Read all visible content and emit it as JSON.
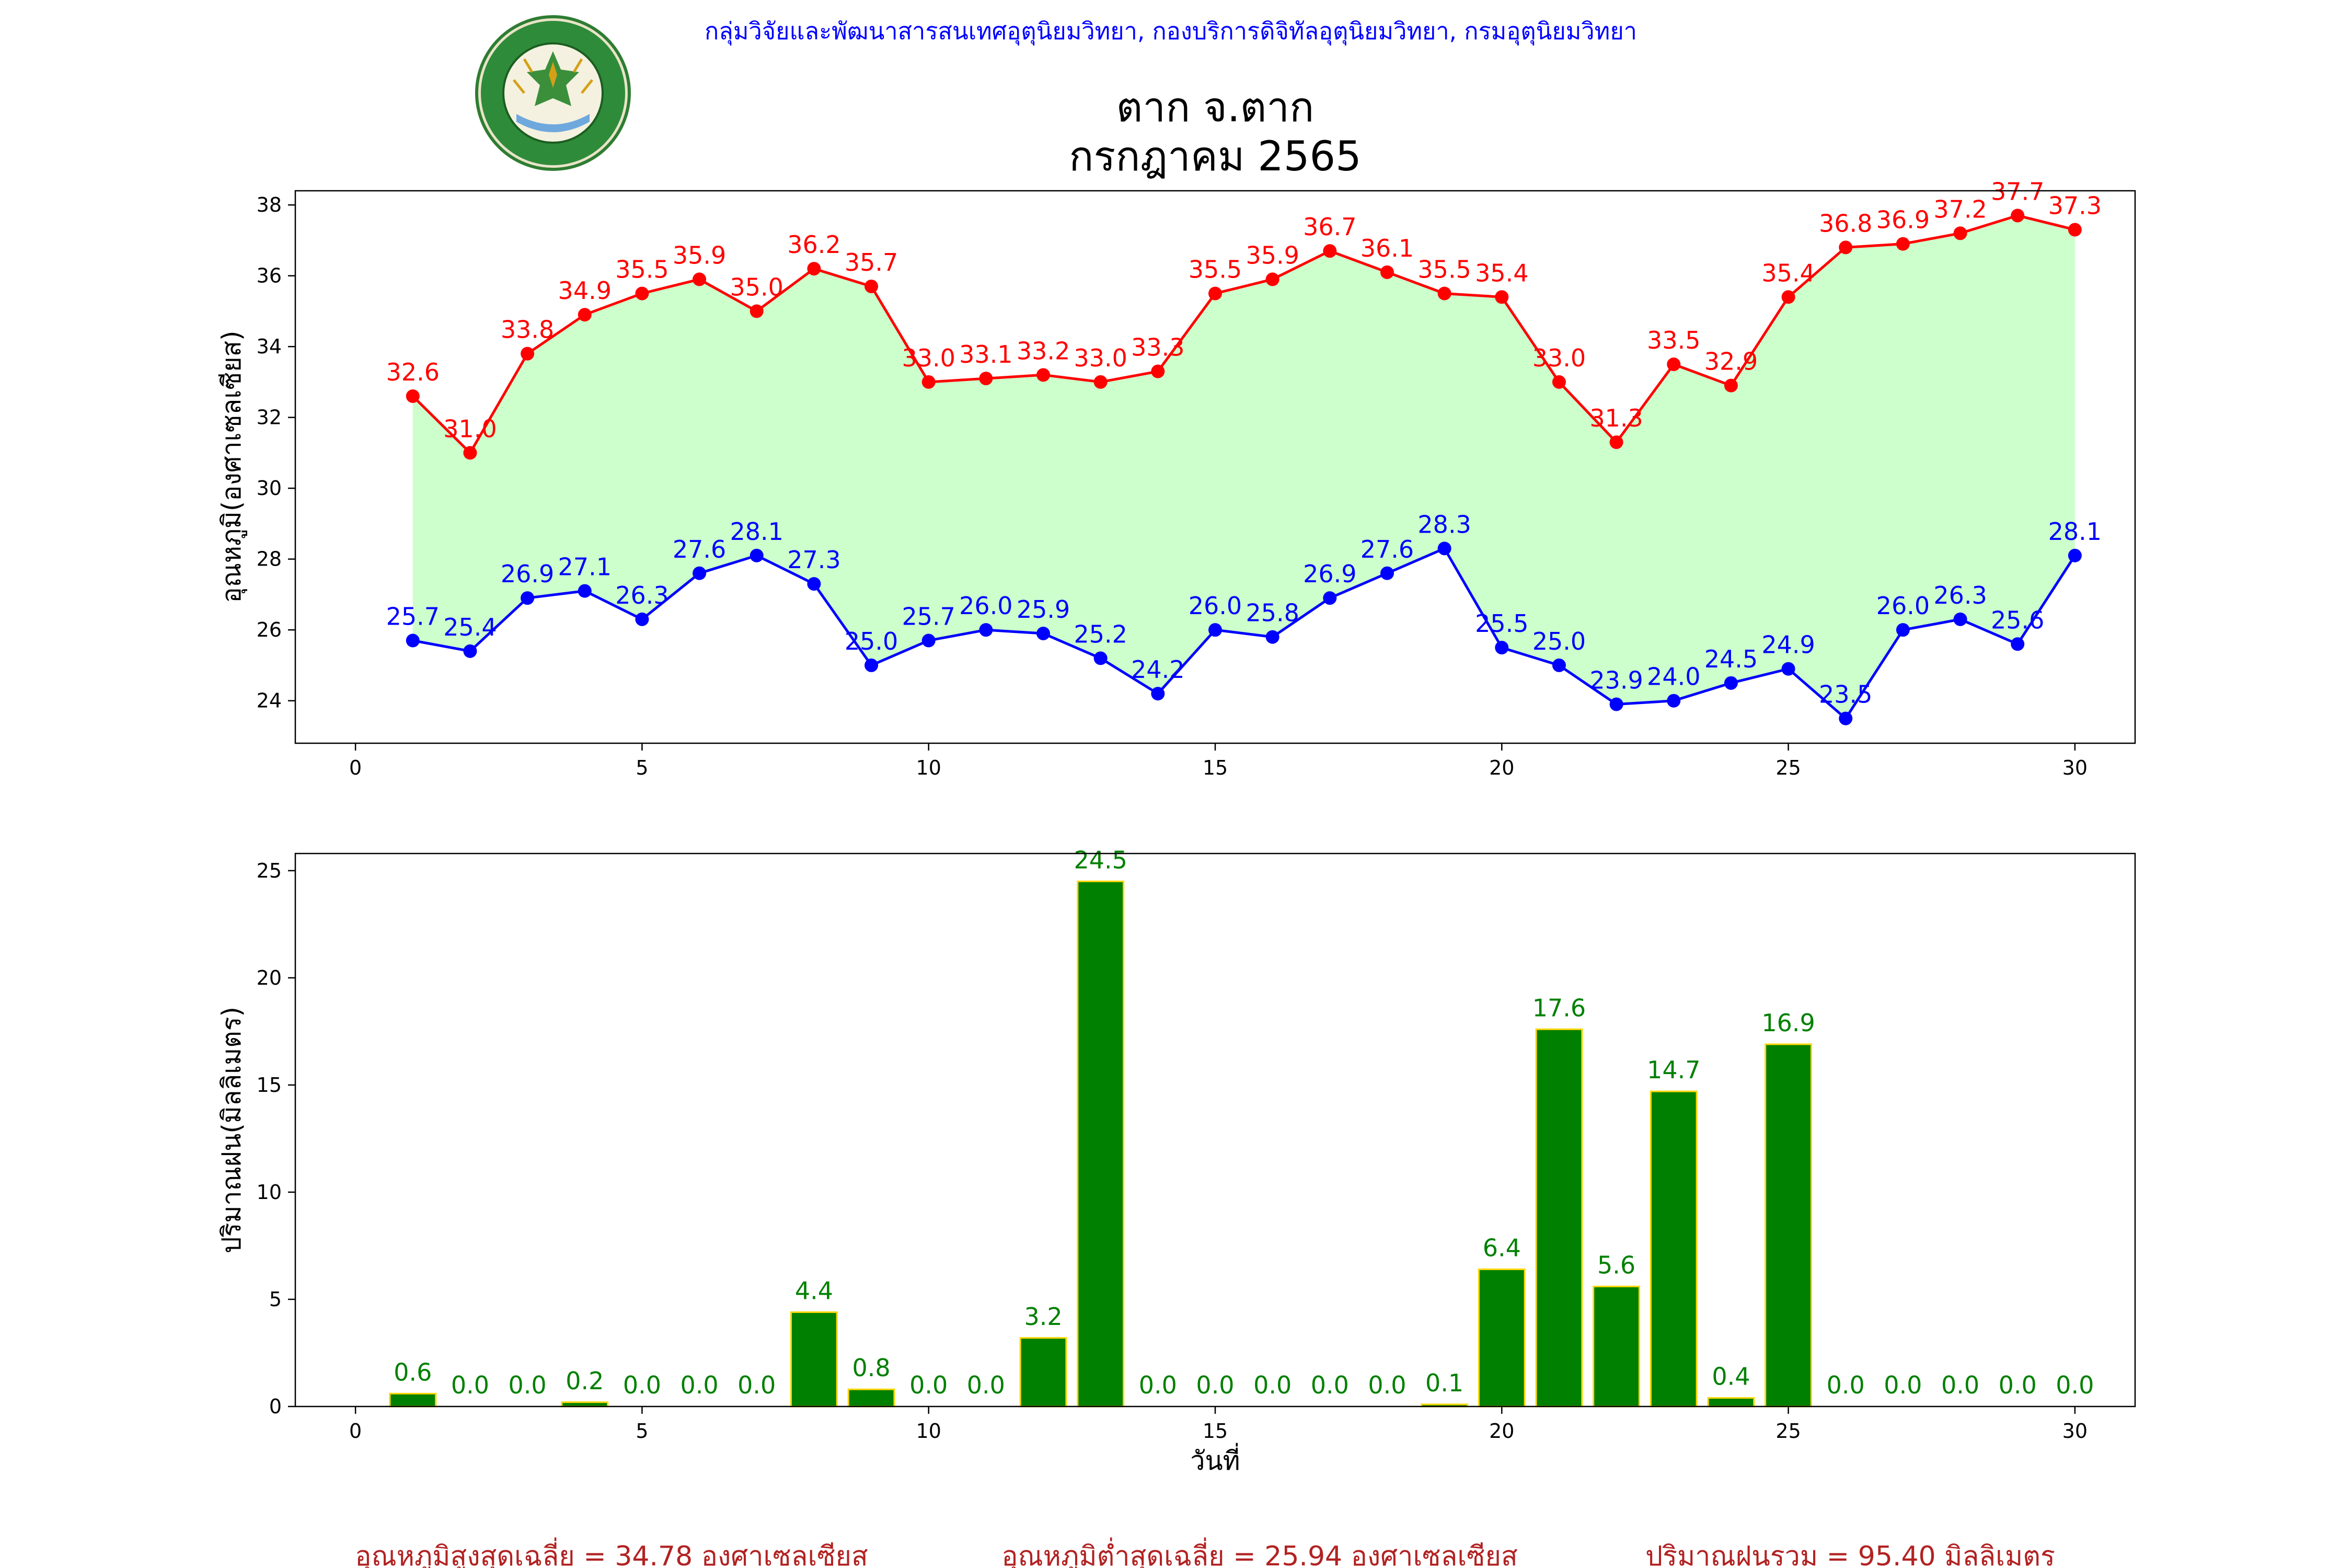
{
  "header": {
    "agency": "กลุ่มวิจัยและพัฒนาสารสนเทศอุตุนิยมวิทยา, กองบริการดิจิทัลอุตุนิยมวิทยา, กรมอุตุนิยมวิทยา",
    "title_line1": "ตาก จ.ตาก",
    "title_line2": "กรกฎาคม 2565",
    "logo_top_text": "กรมอุตุนิยมวิทยา",
    "logo_bottom_text": "METEOROLOGICAL DEPARTMENT"
  },
  "colors": {
    "max_series": "#ff0000",
    "min_series": "#0000ff",
    "fill": "#ccffcc",
    "bar_fill": "#008000",
    "bar_edge": "#ffd700",
    "bar_label": "#008000",
    "agency_text": "#0000ff",
    "footer_text": "#b22222"
  },
  "chart_data": [
    {
      "type": "line",
      "ylabel": "อุณหภูมิ(องศาเซลเซียส)",
      "xlim": [
        -1.05,
        31.05
      ],
      "ylim": [
        22.8,
        38.4
      ],
      "xticks": [
        0,
        5,
        10,
        15,
        20,
        25,
        30
      ],
      "yticks": [
        24,
        26,
        28,
        30,
        32,
        34,
        36,
        38
      ],
      "x": [
        1,
        2,
        3,
        4,
        5,
        6,
        7,
        8,
        9,
        10,
        11,
        12,
        13,
        14,
        15,
        16,
        17,
        18,
        19,
        20,
        21,
        22,
        23,
        24,
        25,
        26,
        27,
        28,
        29,
        30
      ],
      "series": [
        {
          "key": "max",
          "values": [
            32.6,
            31.0,
            33.8,
            34.9,
            35.5,
            35.9,
            35.0,
            36.2,
            35.7,
            33.0,
            33.1,
            33.2,
            33.0,
            33.3,
            35.5,
            35.9,
            36.7,
            36.1,
            35.5,
            35.4,
            33.0,
            31.3,
            33.5,
            32.9,
            35.4,
            36.8,
            36.9,
            37.2,
            37.7,
            37.3
          ]
        },
        {
          "key": "min",
          "values": [
            25.7,
            25.4,
            26.9,
            27.1,
            26.3,
            27.6,
            28.1,
            27.3,
            25.0,
            25.7,
            26.0,
            25.9,
            25.2,
            24.2,
            26.0,
            25.8,
            26.9,
            27.6,
            28.3,
            25.5,
            25.0,
            23.9,
            24.0,
            24.5,
            24.9,
            23.5,
            26.0,
            26.3,
            25.6,
            28.1
          ]
        }
      ],
      "fill_between": true
    },
    {
      "type": "bar",
      "xlabel": "วันที่",
      "ylabel": "ปริมาณฝน(มิลลิเมตร)",
      "xlim": [
        -1.05,
        31.05
      ],
      "ylim": [
        0,
        25.8
      ],
      "xticks": [
        0,
        5,
        10,
        15,
        20,
        25,
        30
      ],
      "yticks": [
        0,
        5,
        10,
        15,
        20,
        25
      ],
      "x": [
        1,
        2,
        3,
        4,
        5,
        6,
        7,
        8,
        9,
        10,
        11,
        12,
        13,
        14,
        15,
        16,
        17,
        18,
        19,
        20,
        21,
        22,
        23,
        24,
        25,
        26,
        27,
        28,
        29,
        30
      ],
      "values": [
        0.6,
        0.0,
        0.0,
        0.2,
        0.0,
        0.0,
        0.0,
        4.4,
        0.8,
        0.0,
        0.0,
        3.2,
        24.5,
        0.0,
        0.0,
        0.0,
        0.0,
        0.0,
        0.1,
        6.4,
        17.6,
        5.6,
        14.7,
        0.4,
        16.9,
        0.0,
        0.0,
        0.0,
        0.0,
        0.0
      ]
    }
  ],
  "footer": {
    "avg_max": "อุณหภูมิสูงสุดเฉลี่ย = 34.78 องศาเซลเซียส",
    "avg_min": "อุณหภูมิต่ำสุดเฉลี่ย = 25.94 องศาเซลเซียส",
    "total_rain": "ปริมาณฝนรวม = 95.40 มิลลิเมตร"
  }
}
